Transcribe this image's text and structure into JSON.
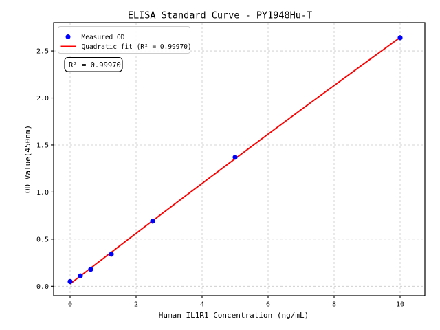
{
  "chart_data": {
    "type": "scatter",
    "title": "ELISA Standard Curve - PY1948Hu-T",
    "xlabel": "Human IL1R1 Concentration (ng/mL)",
    "ylabel": "OD Value(450nm)",
    "x": [
      0,
      0.313,
      0.625,
      1.25,
      2.5,
      5,
      10
    ],
    "y": [
      0.05,
      0.11,
      0.18,
      0.34,
      0.69,
      1.37,
      2.64
    ],
    "fit": {
      "kind": "quadratic",
      "r_squared": 0.9997,
      "x_start": 0,
      "x_end": 10
    },
    "series": [
      {
        "name": "Measured OD",
        "marker": "circle",
        "color": "#0000ff"
      },
      {
        "name": "Quadratic fit (R² = 0.99970)",
        "marker": "line",
        "color": "#ff0000"
      }
    ],
    "annotation": "R² = 0.99970",
    "xlim": [
      -0.5,
      10.75
    ],
    "ylim": [
      -0.1,
      2.8
    ],
    "xticks": {
      "values": [
        0,
        2,
        4,
        6,
        8,
        10
      ],
      "labels": [
        "0",
        "2",
        "4",
        "6",
        "8",
        "10"
      ]
    },
    "yticks": {
      "values": [
        0,
        0.5,
        1.0,
        1.5,
        2.0,
        2.5
      ],
      "labels": [
        "0.0",
        "0.5",
        "1.0",
        "1.5",
        "2.0",
        "2.5"
      ]
    },
    "grid": true,
    "grid_style": "dashed",
    "legend_position": "upper-left",
    "colors": {
      "points": "#0000ff",
      "fit_line": "#ff0000",
      "grid": "#c9c9c9",
      "spine": "#000000",
      "text": "#000000",
      "legend_border": "#cccccc",
      "background": "#ffffff"
    }
  }
}
